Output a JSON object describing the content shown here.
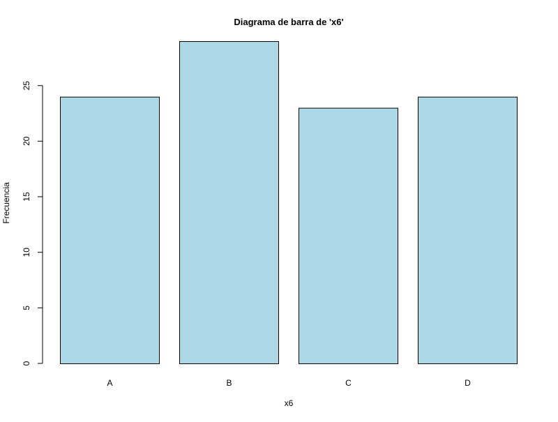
{
  "chart_data": {
    "type": "bar",
    "title": "Diagrama de barra de 'x6'",
    "xlabel": "x6",
    "ylabel": "Frecuencia",
    "categories": [
      "A",
      "B",
      "C",
      "D"
    ],
    "values": [
      24,
      29,
      23,
      24
    ],
    "ylim": [
      0,
      29
    ],
    "yticks": [
      0,
      5,
      10,
      15,
      20,
      25
    ],
    "ytick_labels": [
      "0",
      "5",
      "10",
      "15",
      "20",
      "25"
    ],
    "bar_fill": "#add8e6",
    "bar_stroke": "#000000",
    "grid": false,
    "legend": "none"
  }
}
